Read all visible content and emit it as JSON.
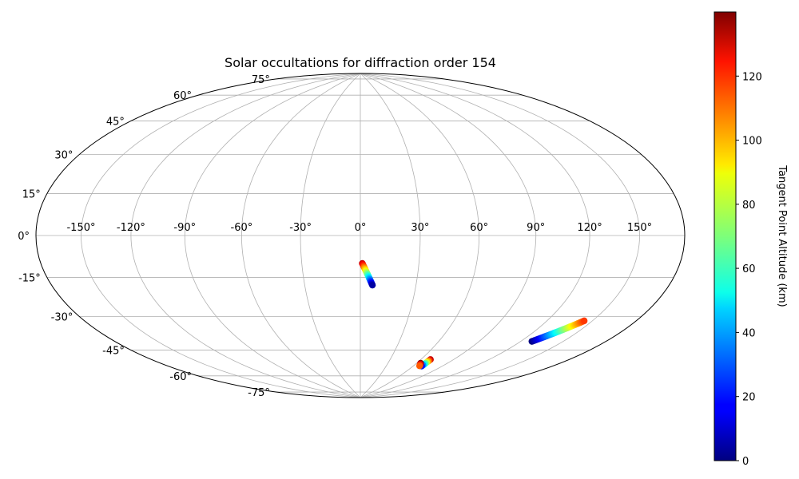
{
  "chart_data": {
    "type": "scatter",
    "projection": "hammer",
    "title": "Solar occultations for diffraction order 154",
    "grid": true,
    "longitude_ticks": [
      "-150°",
      "-120°",
      "-90°",
      "-60°",
      "-30°",
      "0°",
      "30°",
      "60°",
      "90°",
      "120°",
      "150°"
    ],
    "longitude_tick_values": [
      -150,
      -120,
      -90,
      -60,
      -30,
      0,
      30,
      60,
      90,
      120,
      150
    ],
    "latitude_ticks": [
      "75°",
      "60°",
      "45°",
      "30°",
      "15°",
      "0°",
      "-15°",
      "-30°",
      "-45°",
      "-60°",
      "-75°"
    ],
    "latitude_tick_values": [
      75,
      60,
      45,
      30,
      15,
      0,
      -15,
      -30,
      -45,
      -60,
      -75
    ],
    "colormap": "jet",
    "colorbar": {
      "label": "Tangent Point Altitude (km)",
      "range": [
        0,
        140
      ],
      "ticks": [
        0,
        20,
        40,
        60,
        80,
        100,
        120
      ],
      "tick_labels": [
        "0",
        "20",
        "40",
        "60",
        "80",
        "100",
        "120"
      ]
    },
    "series": [
      {
        "lon_start": 1,
        "lat_start": -14,
        "alt_start": 130,
        "lon_end": 6.5,
        "lat_end": -25,
        "alt_end": 5,
        "n": 24
      },
      {
        "lon_start": 69,
        "lat_start": -63.5,
        "alt_start": 130,
        "lon_end": 69,
        "lat_end": -67.5,
        "alt_end": 20,
        "n": 8
      },
      {
        "lon_start": 64,
        "lat_start": -66,
        "alt_start": 140,
        "lon_end": 66.5,
        "lat_end": -67.5,
        "alt_end": 110,
        "n": 4
      },
      {
        "lon_start": 128,
        "lat_start": -48,
        "alt_start": 0,
        "lon_end": 144.5,
        "lat_end": -36,
        "alt_end": 115,
        "n": 40
      }
    ]
  }
}
